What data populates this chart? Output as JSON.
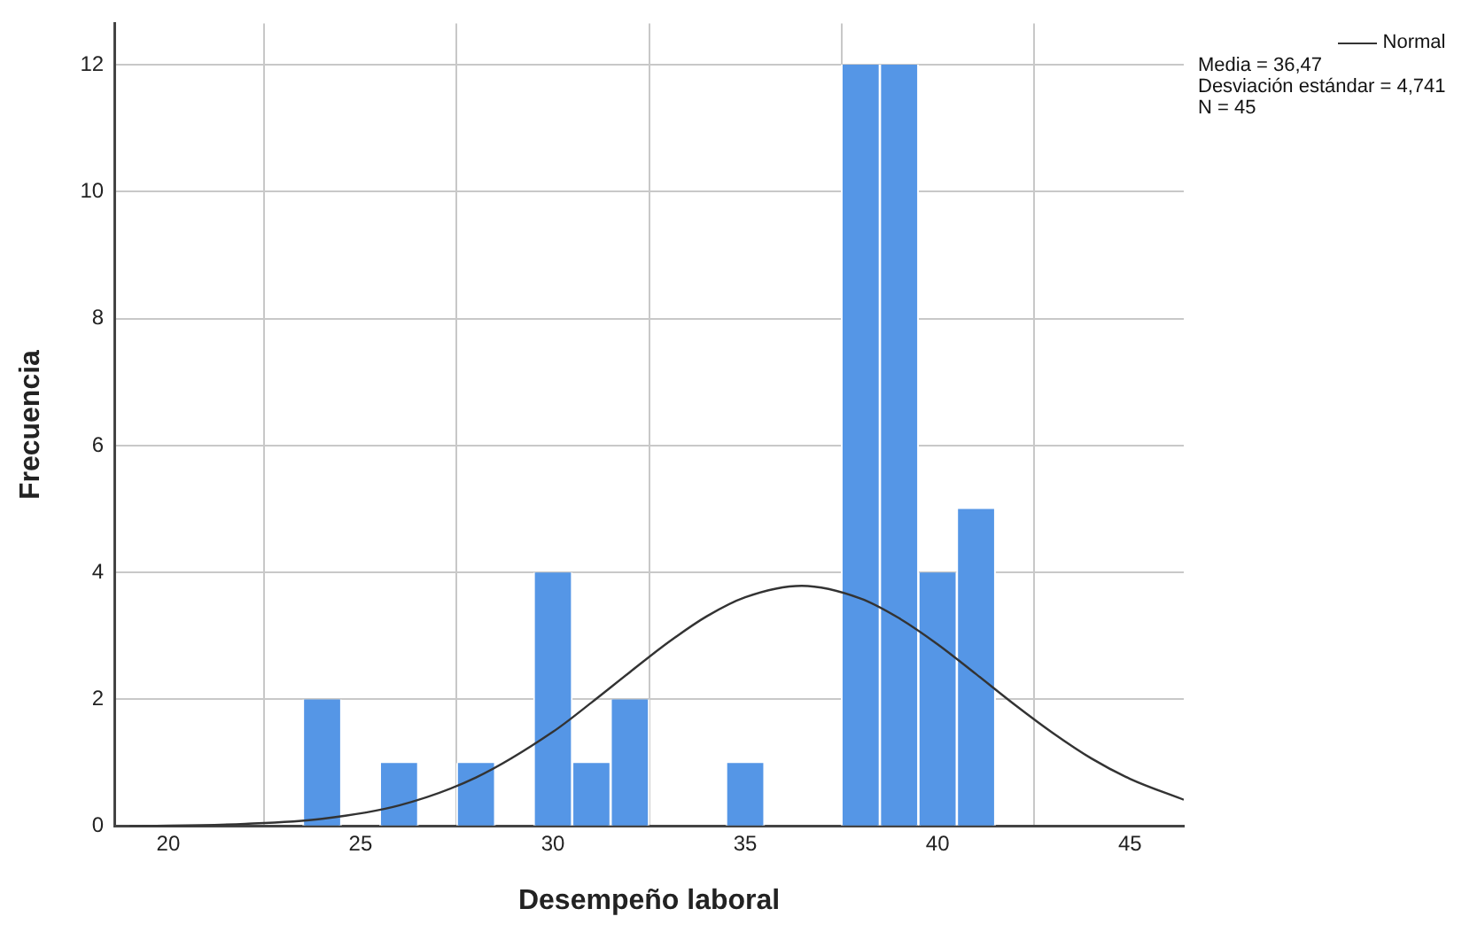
{
  "chart_data": {
    "type": "histogram",
    "xlabel": "Desempeño laboral",
    "ylabel": "Frecuencia",
    "bins": [
      23.5,
      24.5,
      25.5,
      26.5,
      27.5,
      28.5,
      29.5,
      30.5,
      31.5,
      32.5,
      33.5,
      34.5,
      35.5,
      36.5,
      37.5,
      38.5,
      39.5,
      40.5,
      41.5
    ],
    "series": [
      {
        "type": "histogram",
        "color": "#5596e6",
        "values": [
          2,
          0,
          1,
          0,
          1,
          0,
          4,
          1,
          2,
          0,
          0,
          1,
          0,
          0,
          12,
          12,
          4,
          5
        ]
      },
      {
        "type": "line",
        "name": "Normal",
        "color": "#333333",
        "x": [
          19,
          22,
          24,
          26,
          28,
          30,
          31,
          32,
          33,
          34,
          35,
          36.47,
          38,
          39,
          40,
          41,
          42,
          43,
          44,
          45,
          46.4
        ],
        "values": [
          0,
          0.04,
          0.12,
          0.33,
          0.77,
          1.49,
          1.95,
          2.43,
          2.9,
          3.31,
          3.61,
          3.79,
          3.59,
          3.28,
          2.87,
          2.4,
          1.92,
          1.47,
          1.07,
          0.75,
          0.42
        ]
      }
    ],
    "xlim": [
      18.6,
      46.4
    ],
    "xticks": [
      20,
      25,
      30,
      35,
      40,
      45
    ],
    "ylim": [
      0,
      12.65
    ],
    "yticks": [
      0,
      2,
      4,
      6,
      8,
      10,
      12
    ],
    "grid": true,
    "legend": "top right",
    "annotations": [
      "Media = 36,47",
      "Desviación estándar = 4,741",
      "N = 45"
    ]
  }
}
